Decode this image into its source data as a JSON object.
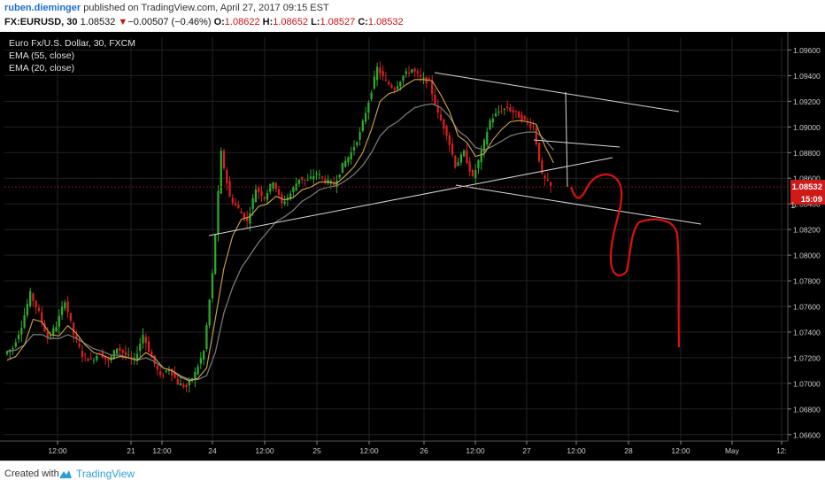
{
  "header": {
    "publisher": "ruben.dieminger",
    "published_text": "published on TradingView.com, April 27, 2017 09:15 EST",
    "symbol": "FX:EURUSD, 30",
    "last": "1.08532",
    "change_arrow": "▼",
    "change": "−0.00507 (−0.46%)",
    "o_label": "O:",
    "o": "1.08622",
    "h_label": "H:",
    "h": "1.08652",
    "l_label": "L:",
    "l": "1.08527",
    "c_label": "C:",
    "c": "1.08532"
  },
  "legend": {
    "instrument": "Euro Fx/U.S. Dollar, 30, FXCM",
    "ema55": "EMA (55, close)",
    "ema20": "EMA (20, close)"
  },
  "price_tag": {
    "price": "1.08532",
    "countdown": "15:09",
    "partial": "1"
  },
  "footer": {
    "created_with": "Created with",
    "brand": "TradingView",
    "logo_icon": "tradingview-cloud-icon"
  },
  "chart_data": {
    "type": "candlestick",
    "symbol": "EURUSD",
    "interval": "30",
    "ylim": [
      1.0655,
      1.097
    ],
    "y_ticks": [
      "1.09600",
      "1.09400",
      "1.09200",
      "1.09000",
      "1.08800",
      "1.08600",
      "1.08400",
      "1.08200",
      "1.08000",
      "1.07800",
      "1.07600",
      "1.07400",
      "1.07200",
      "1.07000",
      "1.06800",
      "1.06600"
    ],
    "x_ticks": [
      "12:00",
      "21",
      "12:00",
      "24",
      "12:00",
      "25",
      "12:00",
      "26",
      "12:00",
      "27",
      "12:00",
      "28",
      "12:00",
      "May",
      "12:"
    ],
    "ohlc_path": [
      1.0723,
      1.0728,
      1.0745,
      1.077,
      1.0755,
      1.0735,
      1.0745,
      1.0765,
      1.0738,
      1.0722,
      1.0718,
      1.0724,
      1.0717,
      1.0728,
      1.0722,
      1.0718,
      1.0738,
      1.072,
      1.0705,
      1.0712,
      1.07,
      1.0697,
      1.0708,
      1.0725,
      1.0785,
      1.088,
      1.0845,
      1.0836,
      1.0826,
      1.0852,
      1.0845,
      1.0858,
      1.084,
      1.0848,
      1.086,
      1.0858,
      1.0864,
      1.0858,
      1.0855,
      1.087,
      1.088,
      1.0895,
      1.092,
      1.0946,
      1.0935,
      1.093,
      1.094,
      1.0945,
      1.0938,
      1.0935,
      1.091,
      1.0895,
      1.087,
      1.088,
      1.086,
      1.088,
      1.0905,
      1.0912,
      1.0915,
      1.091,
      1.0905,
      1.09,
      1.0862,
      1.08532
    ],
    "ema20": [
      1.0718,
      1.0721,
      1.073,
      1.075,
      1.0748,
      1.0738,
      1.0737,
      1.0745,
      1.0739,
      1.073,
      1.0724,
      1.0722,
      1.0719,
      1.0721,
      1.072,
      1.0718,
      1.0724,
      1.072,
      1.0712,
      1.071,
      1.0705,
      1.0702,
      1.0704,
      1.0712,
      1.075,
      1.079,
      1.0815,
      1.0828,
      1.083,
      1.0838,
      1.084,
      1.0846,
      1.0843,
      1.0845,
      1.0851,
      1.0853,
      1.0857,
      1.0857,
      1.0856,
      1.0862,
      1.0869,
      1.088,
      1.0898,
      1.092,
      1.0926,
      1.0928,
      1.0933,
      1.0937,
      1.0937,
      1.0936,
      1.0925,
      1.0912,
      1.0893,
      1.0888,
      1.0877,
      1.0879,
      1.089,
      1.0898,
      1.0904,
      1.0905,
      1.0904,
      1.0902,
      1.0885,
      1.0872
    ],
    "ema55": [
      1.0725,
      1.0726,
      1.073,
      1.0738,
      1.0738,
      1.0735,
      1.0735,
      1.0738,
      1.0735,
      1.0731,
      1.0727,
      1.0725,
      1.0722,
      1.0722,
      1.072,
      1.0718,
      1.072,
      1.0717,
      1.0712,
      1.071,
      1.0706,
      1.0703,
      1.0703,
      1.0706,
      1.0724,
      1.0755,
      1.0775,
      1.079,
      1.08,
      1.081,
      1.0818,
      1.0826,
      1.083,
      1.0835,
      1.0842,
      1.0846,
      1.0851,
      1.0853,
      1.0854,
      1.0858,
      1.0863,
      1.087,
      1.088,
      1.0893,
      1.09,
      1.0904,
      1.091,
      1.0915,
      1.0917,
      1.0918,
      1.0915,
      1.0908,
      1.0897,
      1.0892,
      1.0884,
      1.0882,
      1.0885,
      1.0889,
      1.0893,
      1.0895,
      1.0896,
      1.0896,
      1.089,
      1.0882
    ],
    "last_price": 1.08532,
    "colors": {
      "up": "#2eaa2e",
      "down": "#d62020",
      "ema20": "#d4a64a",
      "ema55": "#777777",
      "trendline": "#d8d8d8",
      "drawing": "#e01010",
      "last_price_line": "#8b1a1a",
      "price_tag": "#d01a1a",
      "background": "#000000",
      "grid": "#222222"
    }
  }
}
